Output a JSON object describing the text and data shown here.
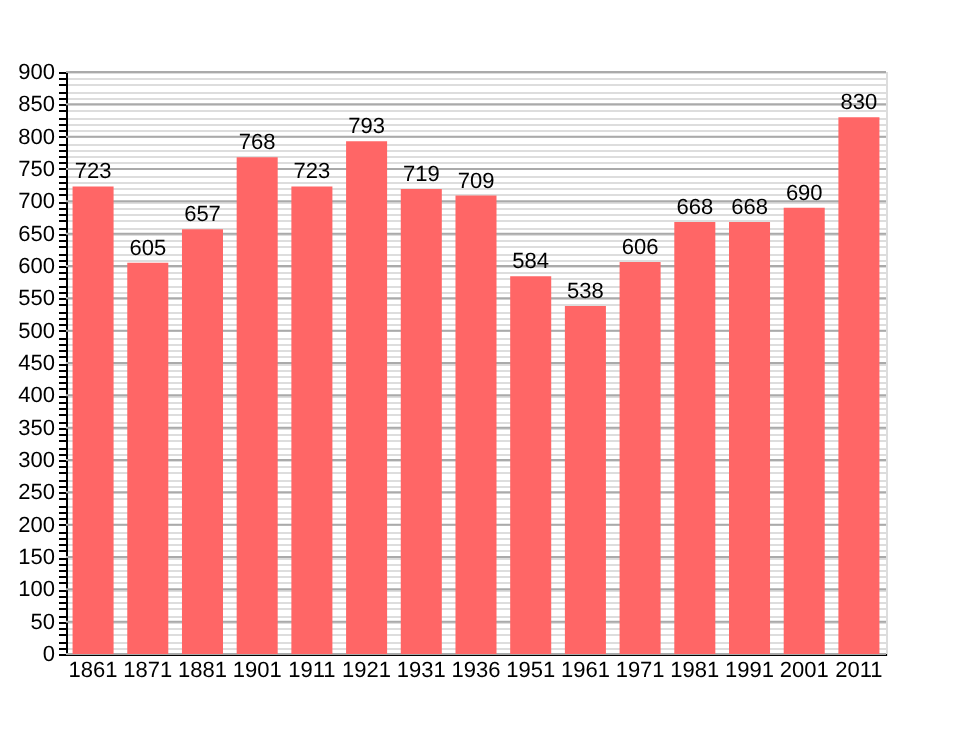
{
  "chart_data": {
    "type": "bar",
    "categories": [
      "1861",
      "1871",
      "1881",
      "1901",
      "1911",
      "1921",
      "1931",
      "1936",
      "1951",
      "1961",
      "1971",
      "1981",
      "1991",
      "2001",
      "2011"
    ],
    "values": [
      723,
      605,
      657,
      768,
      723,
      793,
      719,
      709,
      584,
      538,
      606,
      668,
      668,
      690,
      830
    ],
    "color": "#ff6666",
    "data_labels": true,
    "grid": "y",
    "ylim": [
      0,
      900
    ],
    "yticks": [
      0,
      {
        "value": 10,
        "label": null
      },
      {
        "value": 20,
        "label": null
      },
      {
        "value": 30,
        "label": null
      },
      {
        "value": 40,
        "label": null
      },
      50,
      {
        "value": 60,
        "label": null
      },
      {
        "value": 70,
        "label": null
      },
      {
        "value": 80,
        "label": null
      },
      {
        "value": 90,
        "label": null
      },
      100,
      {
        "value": 110,
        "label": null
      },
      {
        "value": 120,
        "label": null
      },
      {
        "value": 130,
        "label": null
      },
      {
        "value": 140,
        "label": null
      },
      150,
      {
        "value": 160,
        "label": null
      },
      {
        "value": 170,
        "label": null
      },
      {
        "value": 180,
        "label": null
      },
      {
        "value": 190,
        "label": null
      },
      200,
      {
        "value": 210,
        "label": null
      },
      {
        "value": 220,
        "label": null
      },
      {
        "value": 230,
        "label": null
      },
      {
        "value": 240,
        "label": null
      },
      250,
      {
        "value": 260,
        "label": null
      },
      {
        "value": 270,
        "label": null
      },
      {
        "value": 280,
        "label": null
      },
      {
        "value": 290,
        "label": null
      },
      300,
      {
        "value": 310,
        "label": null
      },
      {
        "value": 320,
        "label": null
      },
      {
        "value": 330,
        "label": null
      },
      {
        "value": 340,
        "label": null
      },
      350,
      {
        "value": 360,
        "label": null
      },
      {
        "value": 370,
        "label": null
      },
      {
        "value": 380,
        "label": null
      },
      {
        "value": 390,
        "label": null
      },
      400,
      {
        "value": 410,
        "label": null
      },
      {
        "value": 420,
        "label": null
      },
      {
        "value": 430,
        "label": null
      },
      {
        "value": 440,
        "label": null
      },
      450,
      {
        "value": 460,
        "label": null
      },
      {
        "value": 470,
        "label": null
      },
      {
        "value": 480,
        "label": null
      },
      {
        "value": 490,
        "label": null
      },
      500,
      {
        "value": 510,
        "label": null
      },
      {
        "value": 520,
        "label": null
      },
      {
        "value": 530,
        "label": null
      },
      {
        "value": 540,
        "label": null
      },
      550,
      {
        "value": 560,
        "label": null
      },
      {
        "value": 570,
        "label": null
      },
      {
        "value": 580,
        "label": null
      },
      {
        "value": 590,
        "label": null
      },
      600,
      {
        "value": 610,
        "label": null
      },
      {
        "value": 620,
        "label": null
      },
      {
        "value": 630,
        "label": null
      },
      {
        "value": 640,
        "label": null
      },
      650,
      {
        "value": 660,
        "label": null
      },
      {
        "value": 670,
        "label": null
      },
      {
        "value": 680,
        "label": null
      },
      {
        "value": 690,
        "label": null
      },
      700,
      {
        "value": 710,
        "label": null
      },
      {
        "value": 720,
        "label": null
      },
      {
        "value": 730,
        "label": null
      },
      {
        "value": 740,
        "label": null
      },
      750,
      {
        "value": 760,
        "label": null
      },
      {
        "value": 770,
        "label": null
      },
      {
        "value": 780,
        "label": null
      },
      {
        "value": 790,
        "label": null
      },
      800,
      {
        "value": 810,
        "label": null
      },
      {
        "value": 820,
        "label": null
      },
      {
        "value": 830,
        "label": null
      },
      {
        "value": 840,
        "label": null
      },
      850,
      {
        "value": 860,
        "label": null
      },
      {
        "value": 870,
        "label": null
      },
      {
        "value": 880,
        "label": null
      },
      {
        "value": 890,
        "label": null
      },
      900
    ]
  }
}
